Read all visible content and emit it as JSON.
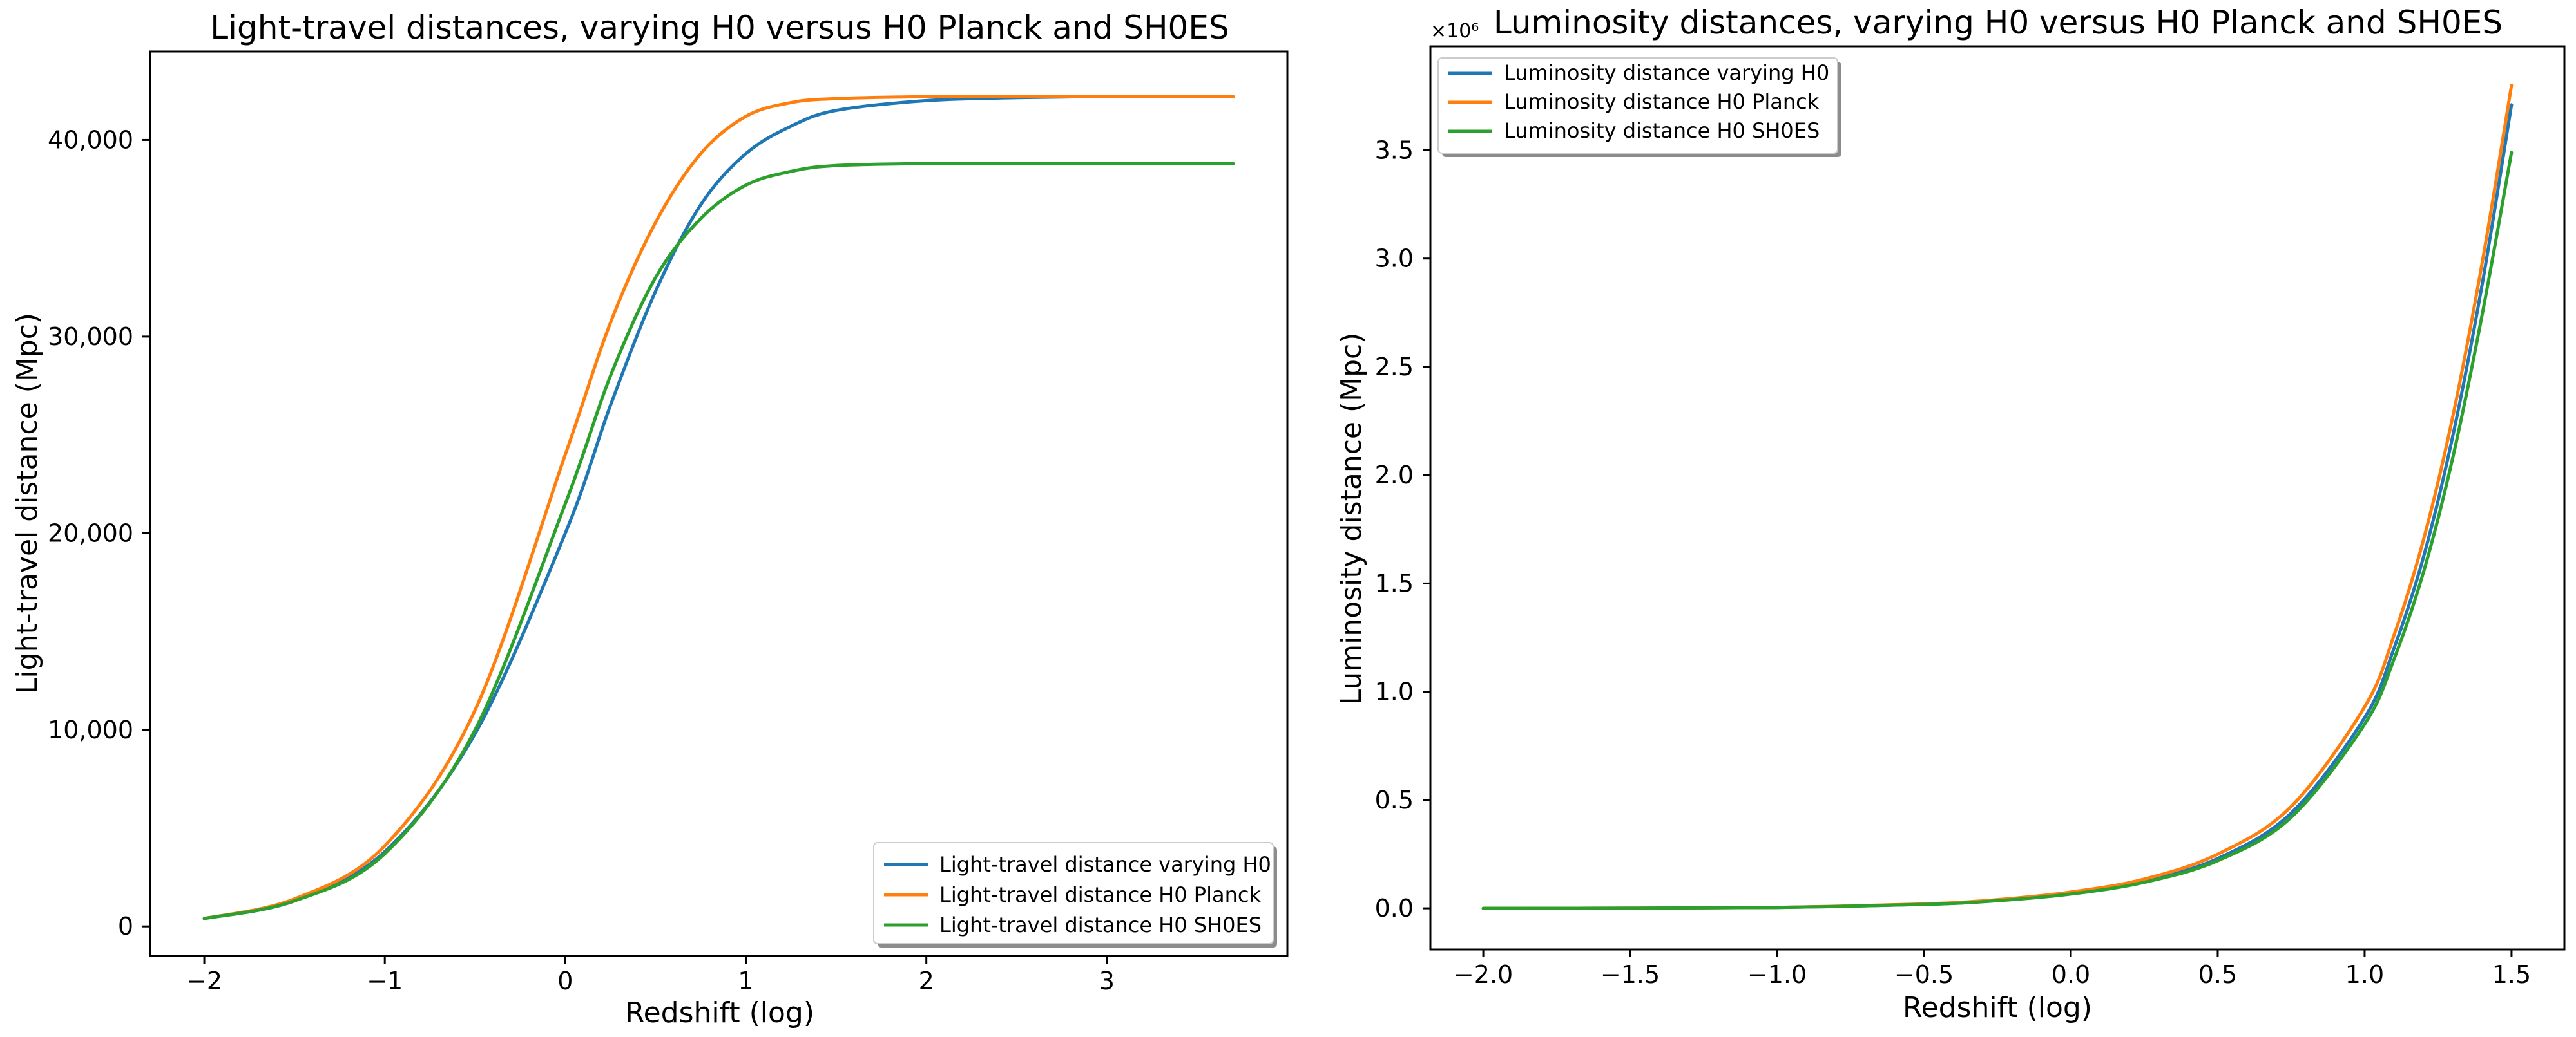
{
  "chart_data": [
    {
      "type": "line",
      "title": "Light-travel distances, varying H0 versus H0 Planck and SH0ES",
      "xlabel": "Redshift (log)",
      "ylabel": "Light-travel distance (Mpc)",
      "xlim": [
        -2.3,
        4.0
      ],
      "ylim": [
        -1500,
        44500
      ],
      "xticks": [
        -2,
        -1,
        0,
        1,
        2,
        3
      ],
      "xtick_labels": [
        "−2",
        "−1",
        "0",
        "1",
        "2",
        "3"
      ],
      "yticks": [
        0,
        10000,
        20000,
        30000,
        40000
      ],
      "ytick_labels": [
        "0",
        "10,000",
        "20,000",
        "30,000",
        "40,000"
      ],
      "legend_position": "bottom-right",
      "series": [
        {
          "name": "Light-travel distance varying H0",
          "color": "#1f77b4",
          "x": [
            -2.0,
            -1.5,
            -1.0,
            -0.5,
            0.0,
            0.25,
            0.5,
            0.75,
            1.0,
            1.25,
            1.5,
            2.0,
            2.5,
            3.0,
            3.7
          ],
          "y": [
            400,
            1300,
            3800,
            9800,
            20000,
            26500,
            32300,
            36700,
            39300,
            40700,
            41500,
            42000,
            42150,
            42200,
            42200
          ]
        },
        {
          "name": "Light-travel distance H0 Planck",
          "color": "#ff7f0e",
          "x": [
            -2.0,
            -1.5,
            -1.0,
            -0.5,
            0.0,
            0.25,
            0.5,
            0.75,
            1.0,
            1.25,
            1.5,
            2.0,
            2.5,
            3.0,
            3.7
          ],
          "y": [
            400,
            1400,
            4100,
            11000,
            24000,
            30700,
            35800,
            39300,
            41200,
            41900,
            42100,
            42200,
            42200,
            42200,
            42200
          ]
        },
        {
          "name": "Light-travel distance H0 SH0ES",
          "color": "#2ca02c",
          "x": [
            -2.0,
            -1.5,
            -1.0,
            -0.5,
            0.0,
            0.25,
            0.5,
            0.75,
            1.0,
            1.25,
            1.5,
            2.0,
            2.5,
            3.0,
            3.7
          ],
          "y": [
            400,
            1300,
            3700,
            10000,
            21500,
            28000,
            33000,
            36000,
            37700,
            38400,
            38700,
            38800,
            38800,
            38800,
            38800
          ]
        }
      ]
    },
    {
      "type": "line",
      "title": "Luminosity distances, varying H0 versus H0 Planck and SH0ES",
      "xlabel": "Redshift (log)",
      "ylabel": "Luminosity distance (Mpc)",
      "y_offset_label": "×10⁶",
      "xlim": [
        -2.18,
        1.68
      ],
      "ylim": [
        -0.19,
        3.98
      ],
      "xticks": [
        -2.0,
        -1.5,
        -1.0,
        -0.5,
        0.0,
        0.5,
        1.0,
        1.5
      ],
      "xtick_labels": [
        "−2.0",
        "−1.5",
        "−1.0",
        "−0.5",
        "0.0",
        "0.5",
        "1.0",
        "1.5"
      ],
      "yticks": [
        0.0,
        0.5,
        1.0,
        1.5,
        2.0,
        2.5,
        3.0,
        3.5
      ],
      "ytick_labels": [
        "0.0",
        "0.5",
        "1.0",
        "1.5",
        "2.0",
        "2.5",
        "3.0",
        "3.5"
      ],
      "legend_position": "top-left",
      "series": [
        {
          "name": "Luminosity distance varying H0",
          "color": "#1f77b4",
          "x": [
            -2.0,
            -1.5,
            -1.0,
            -0.5,
            -0.25,
            0.0,
            0.25,
            0.5,
            0.75,
            1.0,
            1.1,
            1.2,
            1.3,
            1.4,
            1.5
          ],
          "y": [
            0.0,
            0.0006,
            0.004,
            0.018,
            0.036,
            0.068,
            0.125,
            0.23,
            0.44,
            0.88,
            1.2,
            1.62,
            2.18,
            2.88,
            3.71
          ]
        },
        {
          "name": "Luminosity distance H0 Planck",
          "color": "#ff7f0e",
          "x": [
            -2.0,
            -1.5,
            -1.0,
            -0.5,
            -0.25,
            0.0,
            0.25,
            0.5,
            0.75,
            1.0,
            1.1,
            1.2,
            1.3,
            1.4,
            1.5
          ],
          "y": [
            0.0,
            0.0007,
            0.0045,
            0.02,
            0.04,
            0.075,
            0.135,
            0.25,
            0.47,
            0.93,
            1.26,
            1.7,
            2.27,
            2.98,
            3.8
          ]
        },
        {
          "name": "Luminosity distance H0 SH0ES",
          "color": "#2ca02c",
          "x": [
            -2.0,
            -1.5,
            -1.0,
            -0.5,
            -0.25,
            0.0,
            0.25,
            0.5,
            0.75,
            1.0,
            1.1,
            1.2,
            1.3,
            1.4,
            1.5
          ],
          "y": [
            0.0,
            0.0006,
            0.004,
            0.018,
            0.035,
            0.066,
            0.12,
            0.22,
            0.42,
            0.85,
            1.15,
            1.55,
            2.08,
            2.74,
            3.49
          ]
        }
      ]
    }
  ]
}
